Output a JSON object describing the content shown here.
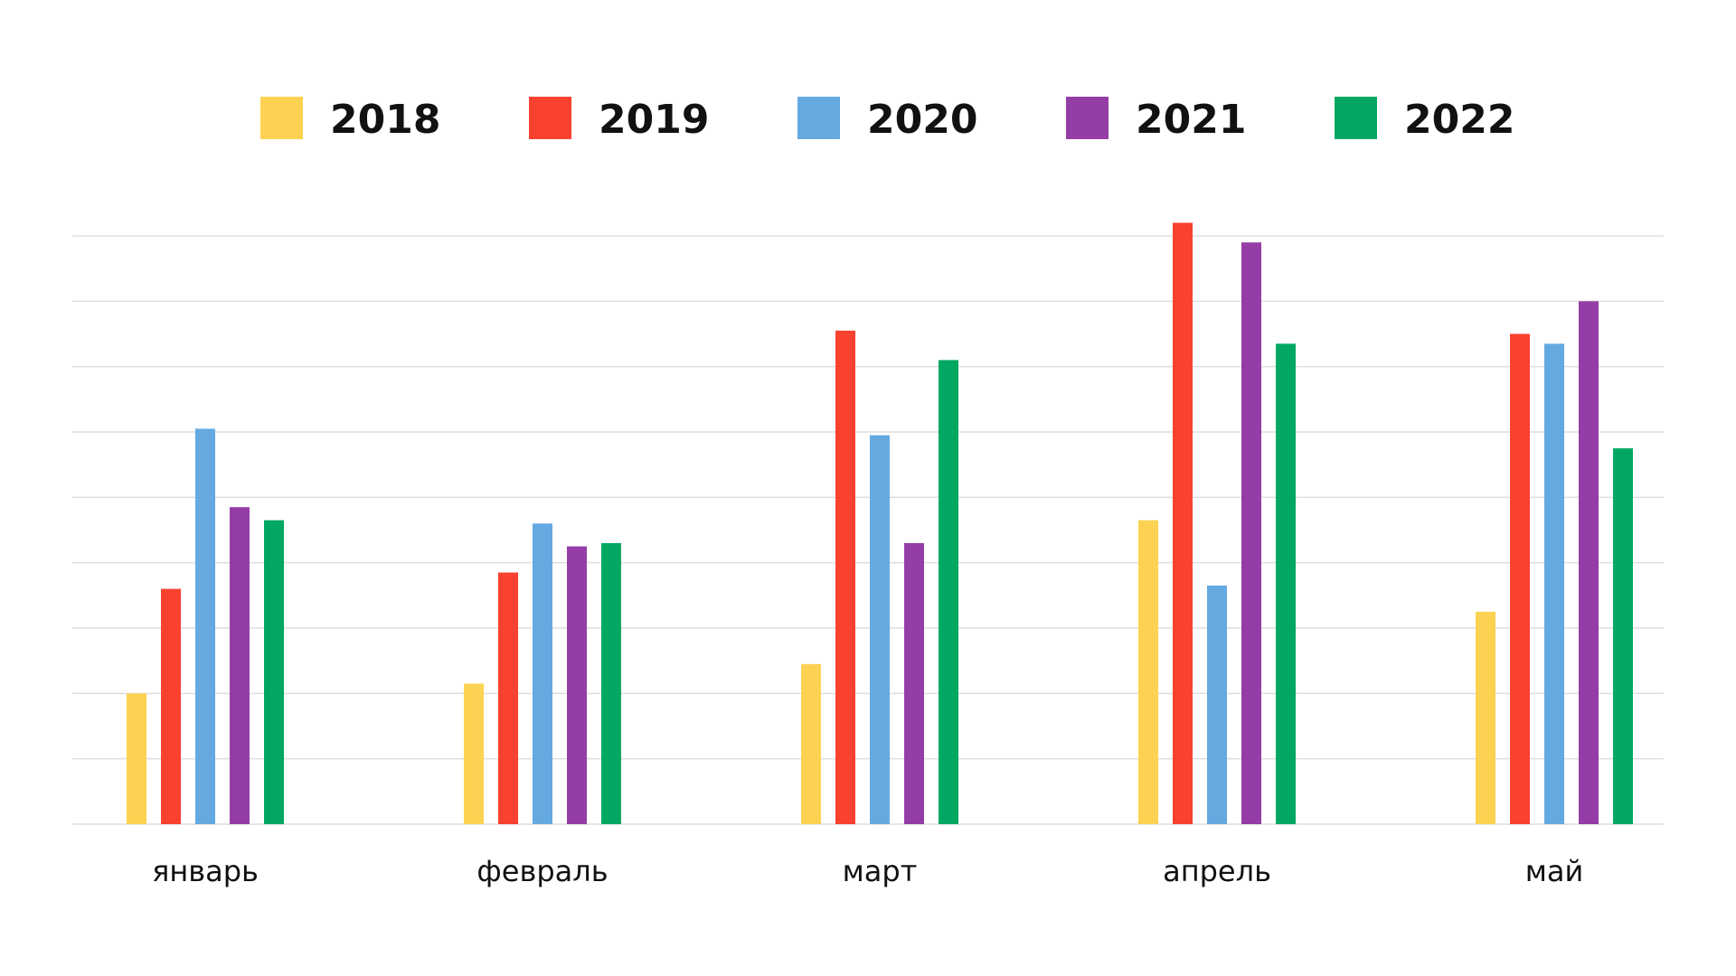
{
  "chart_data": {
    "type": "bar",
    "categories": [
      "январь",
      "февраль",
      "март",
      "апрель",
      "май"
    ],
    "series": [
      {
        "name": "2018",
        "color": "#FDD253",
        "values": [
          2.0,
          2.15,
          2.45,
          4.65,
          3.25
        ]
      },
      {
        "name": "2019",
        "color": "#F94130",
        "values": [
          3.6,
          3.85,
          7.55,
          9.2,
          7.5
        ]
      },
      {
        "name": "2020",
        "color": "#65A9E1",
        "values": [
          6.05,
          4.6,
          5.95,
          3.65,
          7.35
        ]
      },
      {
        "name": "2021",
        "color": "#953DA6",
        "values": [
          4.85,
          4.25,
          4.3,
          8.9,
          8.0
        ]
      },
      {
        "name": "2022",
        "color": "#02A861",
        "values": [
          4.65,
          4.3,
          7.1,
          7.35,
          5.75
        ]
      }
    ],
    "ylim": [
      0,
      9
    ],
    "grid": true,
    "legend": "top"
  }
}
